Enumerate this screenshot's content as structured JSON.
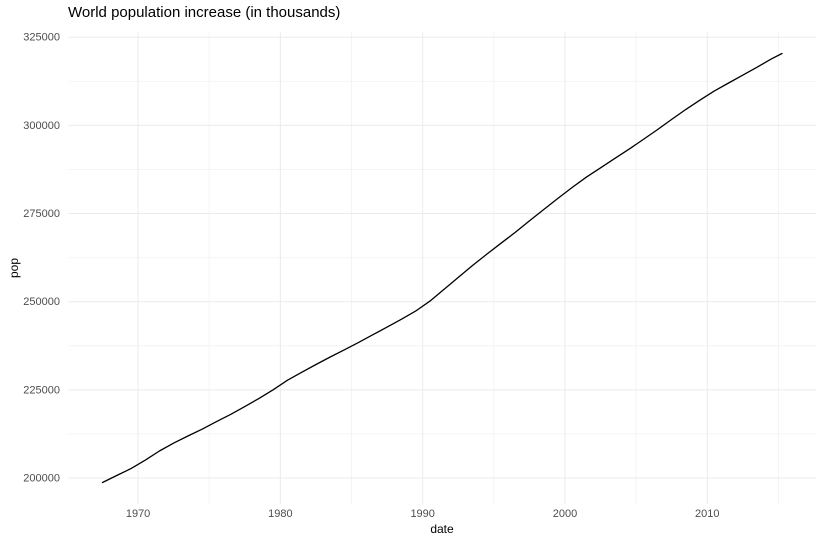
{
  "chart_data": {
    "type": "line",
    "title": "World population increase (in thousands)",
    "xlabel": "date",
    "ylabel": "pop",
    "x_ticks": [
      1970,
      1980,
      1990,
      2000,
      2010
    ],
    "y_ticks": [
      200000,
      225000,
      250000,
      275000,
      300000,
      325000
    ],
    "x_minor_ticks": [
      1975,
      1985,
      1995,
      2005,
      2015
    ],
    "y_minor_ticks": [
      212500,
      237500,
      262500,
      287500,
      312500
    ],
    "xlim": [
      1965.11,
      2017.64
    ],
    "ylim": [
      192627,
      326487
    ],
    "grid": true,
    "legend": "none",
    "colors": {
      "line": "#000000",
      "major_grid": "#EBEBEB",
      "minor_grid": "#F4F4F4",
      "tick_label": "#4D4D4D",
      "title": "#000000",
      "background": "#FFFFFF"
    },
    "series": [
      {
        "name": "pop",
        "points": [
          [
            1967.5,
            198712
          ],
          [
            1968.5,
            200706
          ],
          [
            1969.5,
            202677
          ],
          [
            1970.5,
            205052
          ],
          [
            1971.5,
            207661
          ],
          [
            1972.5,
            209896
          ],
          [
            1973.5,
            211909
          ],
          [
            1974.5,
            213854
          ],
          [
            1975.5,
            215973
          ],
          [
            1976.5,
            218035
          ],
          [
            1977.5,
            220239
          ],
          [
            1978.5,
            222585
          ],
          [
            1979.5,
            225055
          ],
          [
            1980.5,
            227726
          ],
          [
            1981.5,
            229966
          ],
          [
            1982.5,
            232188
          ],
          [
            1983.5,
            234307
          ],
          [
            1984.5,
            236348
          ],
          [
            1985.5,
            238466
          ],
          [
            1986.5,
            240651
          ],
          [
            1987.5,
            242804
          ],
          [
            1988.5,
            245021
          ],
          [
            1989.5,
            247342
          ],
          [
            1990.5,
            250132
          ],
          [
            1991.5,
            253493
          ],
          [
            1992.5,
            256894
          ],
          [
            1993.5,
            260255
          ],
          [
            1994.5,
            263436
          ],
          [
            1995.5,
            266557
          ],
          [
            1996.5,
            269667
          ],
          [
            1997.5,
            272912
          ],
          [
            1998.5,
            276115
          ],
          [
            1999.5,
            279295
          ],
          [
            2000.5,
            282385
          ],
          [
            2001.5,
            285309
          ],
          [
            2002.5,
            287984
          ],
          [
            2003.5,
            290626
          ],
          [
            2004.5,
            293262
          ],
          [
            2005.5,
            295993
          ],
          [
            2006.5,
            298818
          ],
          [
            2007.5,
            301696
          ],
          [
            2008.5,
            304543
          ],
          [
            2009.5,
            307240
          ],
          [
            2010.5,
            309776
          ],
          [
            2011.5,
            312036
          ],
          [
            2012.5,
            314270
          ],
          [
            2013.5,
            316498
          ],
          [
            2014.5,
            318857
          ],
          [
            2015.25,
            320402
          ]
        ]
      }
    ]
  }
}
